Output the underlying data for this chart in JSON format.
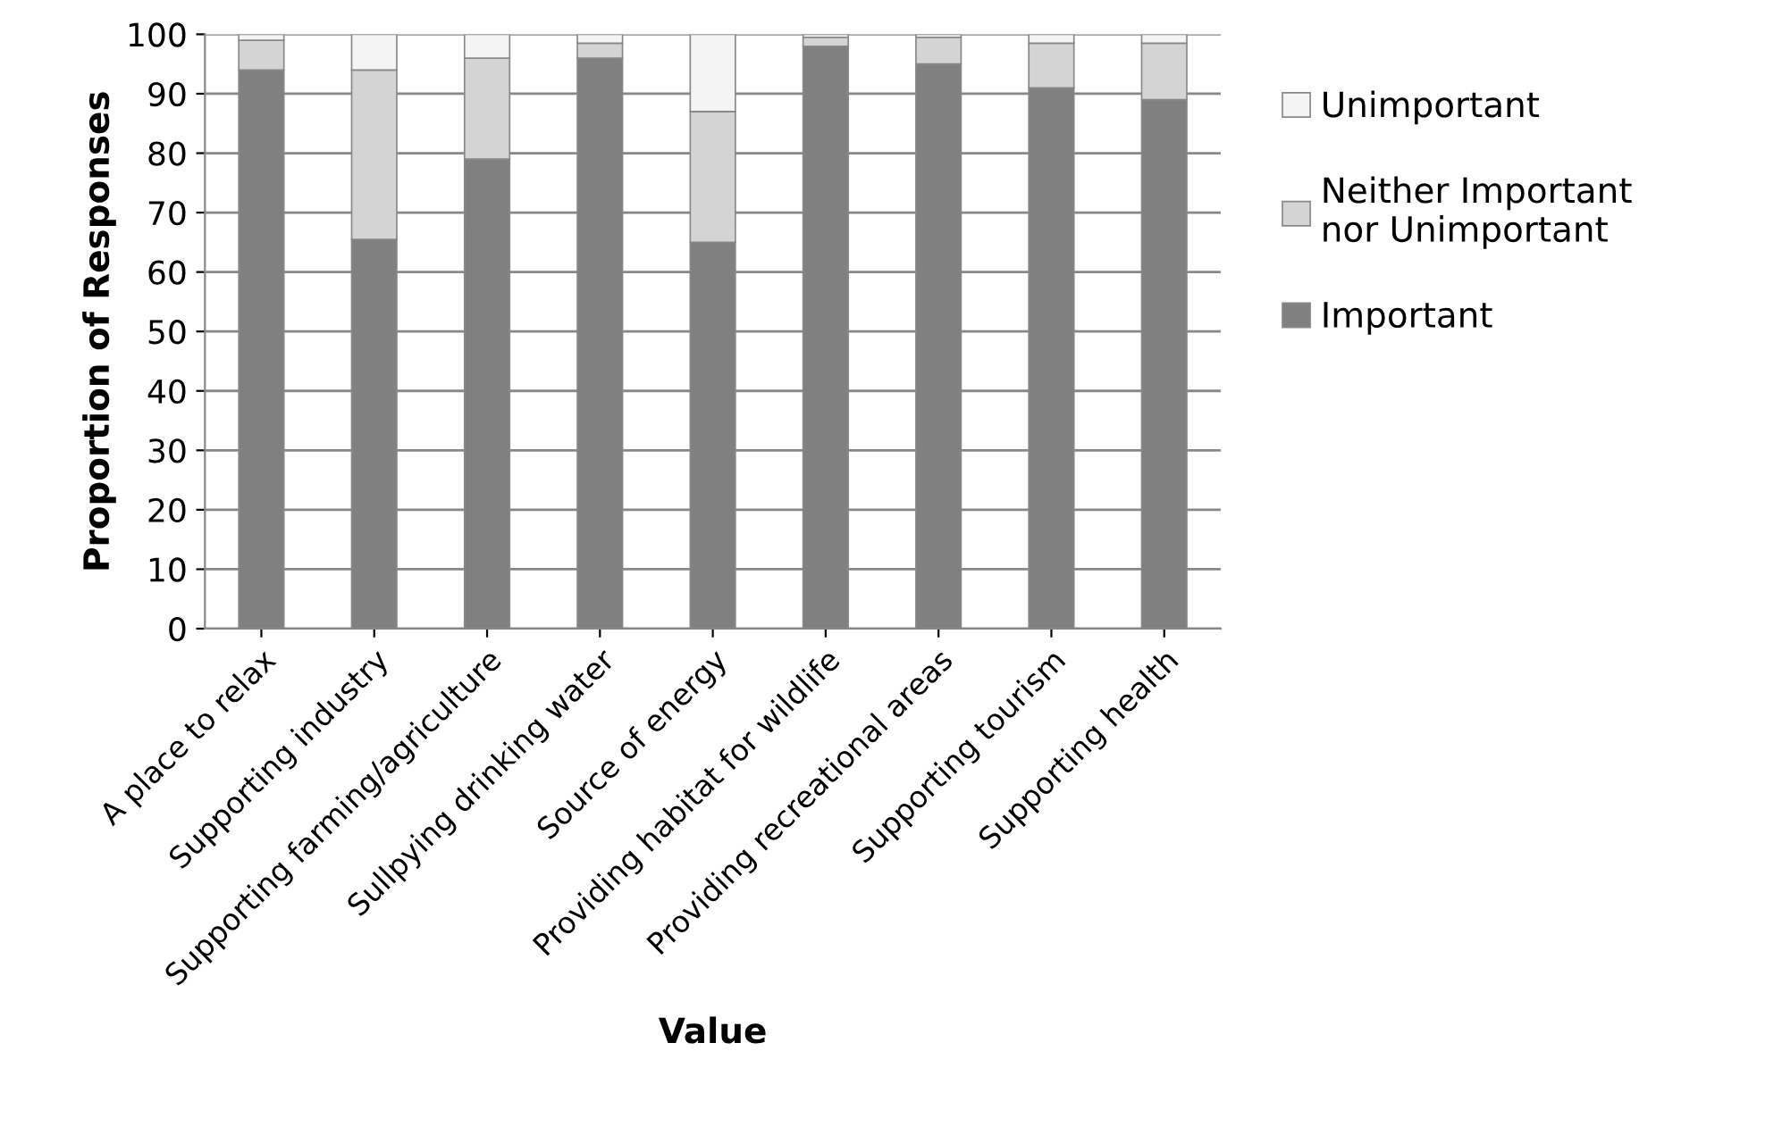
{
  "chart_data": {
    "type": "bar",
    "stacked": true,
    "xlabel": "Value",
    "ylabel": "Proportion of Responses",
    "categories": [
      "A place to relax",
      "Supporting industry",
      "Supporting farming/agriculture",
      "Sullpying drinking water",
      "Source of energy",
      "Providing habitat for wildlife",
      "Providing recreational areas",
      "Supporting tourism",
      "Supporting health"
    ],
    "series": [
      {
        "name": "Important",
        "color": "#808080",
        "values": [
          94,
          65.5,
          79,
          96,
          65,
          98,
          95,
          91,
          89
        ]
      },
      {
        "name": "Neither Important nor Unimportant",
        "color": "#d4d4d4",
        "values": [
          5,
          28.5,
          17,
          2.5,
          22,
          1.5,
          4.5,
          7.5,
          9.5
        ]
      },
      {
        "name": "Unimportant",
        "color": "#f4f4f4",
        "values": [
          1,
          6,
          4,
          1.5,
          13,
          0.5,
          0.5,
          1.5,
          1.5
        ]
      }
    ],
    "ylim": [
      0,
      100
    ],
    "yticks": [
      0,
      10,
      20,
      30,
      40,
      50,
      60,
      70,
      80,
      90,
      100
    ],
    "grid": "y",
    "legend": "right"
  }
}
